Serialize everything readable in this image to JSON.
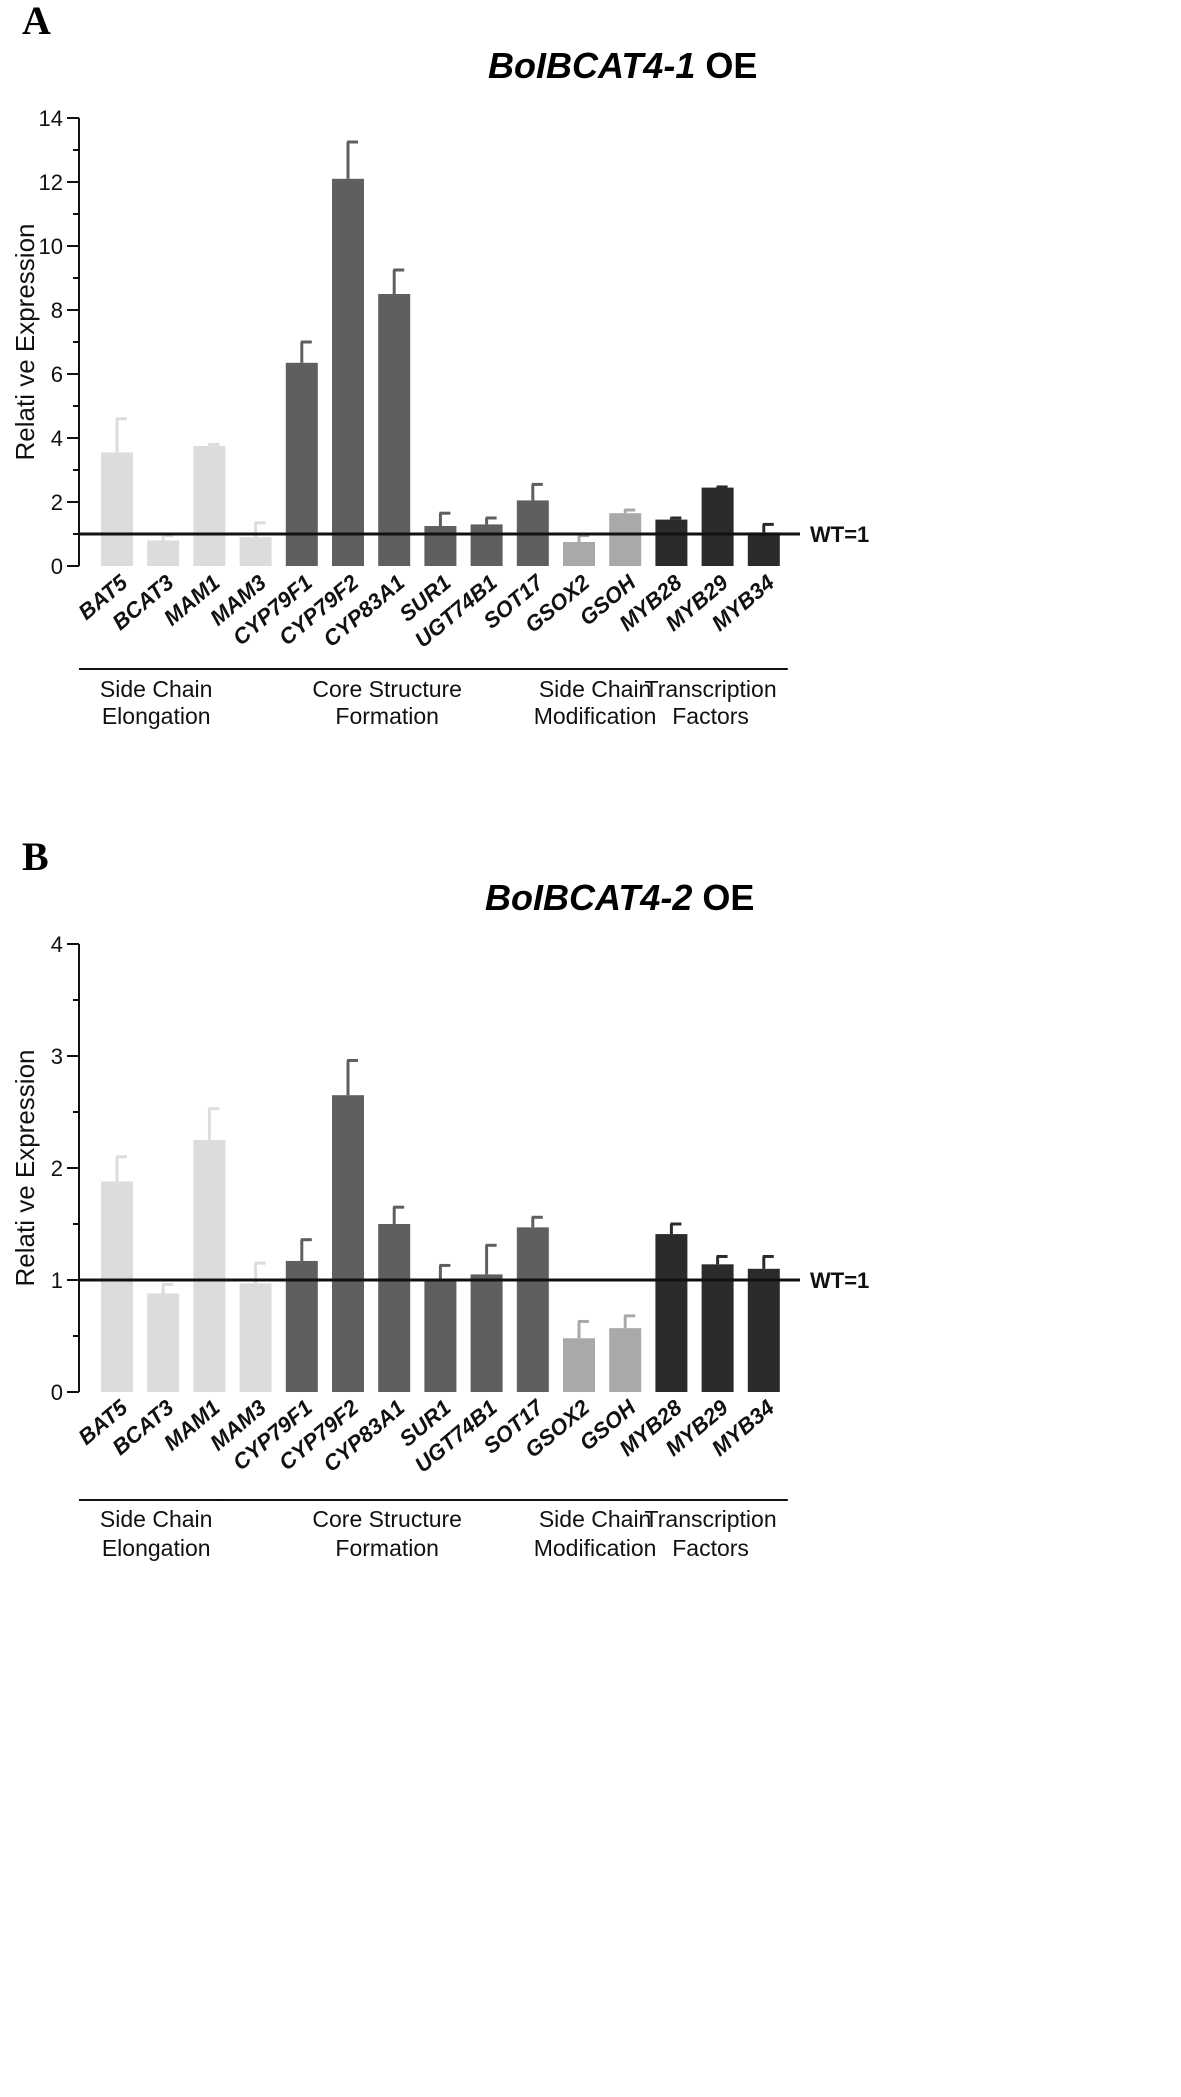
{
  "figure": {
    "panels": [
      {
        "letter": "A",
        "title_italic": "BoIBCAT4-1",
        "title_suffix": " OE",
        "ylabel": "Relati ve Expression",
        "ref_label": "WT=1"
      },
      {
        "letter": "B",
        "title_italic": "BoIBCAT4-2",
        "title_suffix": " OE",
        "ylabel": "Relati ve Expression",
        "ref_label": "WT=1"
      }
    ]
  },
  "chart_data": [
    {
      "type": "bar",
      "title": "BoIBCAT4-1 OE",
      "xlabel": "",
      "ylabel": "Relati ve Expression",
      "ylim": [
        0,
        14
      ],
      "yticks": [
        0,
        2,
        4,
        6,
        8,
        10,
        12,
        14
      ],
      "reference_line": {
        "value": 1,
        "label": "WT=1"
      },
      "categories": [
        "BAT5",
        "BCAT3",
        "MAM1",
        "MAM3",
        "CYP79F1",
        "CYP79F2",
        "CYP83A1",
        "SUR1",
        "UGT74B1",
        "SOT17",
        "GSOX2",
        "GSOH",
        "MYB28",
        "MYB29",
        "MYB34"
      ],
      "values": [
        3.55,
        0.8,
        3.75,
        0.9,
        6.35,
        12.1,
        8.5,
        1.25,
        1.3,
        2.05,
        0.75,
        1.65,
        1.45,
        2.45,
        1.05
      ],
      "errors": [
        1.05,
        0.15,
        0.05,
        0.45,
        0.65,
        1.15,
        0.75,
        0.4,
        0.2,
        0.5,
        0.2,
        0.1,
        0.05,
        0.02,
        0.25
      ],
      "colors": [
        "#dcdcdc",
        "#dcdcdc",
        "#dcdcdc",
        "#dcdcdc",
        "#5f5f5f",
        "#5f5f5f",
        "#5f5f5f",
        "#5f5f5f",
        "#5f5f5f",
        "#5f5f5f",
        "#a9a9a9",
        "#a9a9a9",
        "#2b2b2b",
        "#2b2b2b",
        "#2b2b2b"
      ],
      "groups": [
        {
          "line1": "Side Chain",
          "line2": "Elongation",
          "start": 0,
          "end": 2
        },
        {
          "line1": "Core Structure",
          "line2": "Formation",
          "start": 3,
          "end": 9
        },
        {
          "line1": "Side Chain",
          "line2": "Modification",
          "start": 10,
          "end": 11
        },
        {
          "line1": "Transcription",
          "line2": "Factors",
          "start": 12,
          "end": 14
        }
      ]
    },
    {
      "type": "bar",
      "title": "BoIBCAT4-2 OE",
      "xlabel": "",
      "ylabel": "Relati ve Expression",
      "ylim": [
        0,
        4
      ],
      "yticks": [
        0,
        1,
        2,
        3,
        4
      ],
      "reference_line": {
        "value": 1,
        "label": "WT=1"
      },
      "categories": [
        "BAT5",
        "BCAT3",
        "MAM1",
        "MAM3",
        "CYP79F1",
        "CYP79F2",
        "CYP83A1",
        "SUR1",
        "UGT74B1",
        "SOT17",
        "GSOX2",
        "GSOH",
        "MYB28",
        "MYB29",
        "MYB34"
      ],
      "values": [
        1.88,
        0.88,
        2.25,
        0.97,
        1.17,
        2.65,
        1.5,
        1.0,
        1.05,
        1.47,
        0.48,
        0.57,
        1.41,
        1.14,
        1.1
      ],
      "errors": [
        0.22,
        0.08,
        0.28,
        0.18,
        0.19,
        0.31,
        0.15,
        0.13,
        0.26,
        0.09,
        0.15,
        0.11,
        0.09,
        0.07,
        0.11
      ],
      "colors": [
        "#dcdcdc",
        "#dcdcdc",
        "#dcdcdc",
        "#dcdcdc",
        "#5f5f5f",
        "#5f5f5f",
        "#5f5f5f",
        "#5f5f5f",
        "#5f5f5f",
        "#5f5f5f",
        "#a9a9a9",
        "#a9a9a9",
        "#2b2b2b",
        "#2b2b2b",
        "#2b2b2b"
      ],
      "groups": [
        {
          "line1": "Side Chain",
          "line2": "Elongation",
          "start": 0,
          "end": 2
        },
        {
          "line1": "Core Structure",
          "line2": "Formation",
          "start": 3,
          "end": 9
        },
        {
          "line1": "Side Chain",
          "line2": "Modification",
          "start": 10,
          "end": 11
        },
        {
          "line1": "Transcription",
          "line2": "Factors",
          "start": 12,
          "end": 14
        }
      ]
    }
  ]
}
